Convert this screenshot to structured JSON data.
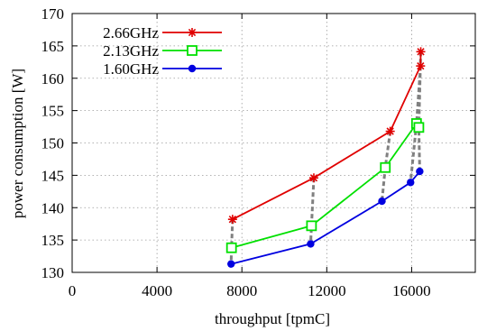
{
  "chart_data": {
    "type": "line",
    "title": "",
    "xlabel": "throughput [tpmC]",
    "ylabel": "power consumption [W]",
    "xlim": [
      0,
      19000
    ],
    "ylim": [
      130,
      170
    ],
    "x_ticks": [
      0,
      4000,
      8000,
      12000,
      16000
    ],
    "x_tick_labels": [
      "0",
      "4000",
      "8000",
      "12000",
      "16000"
    ],
    "y_ticks": [
      130,
      135,
      140,
      145,
      150,
      155,
      160,
      165,
      170
    ],
    "y_tick_labels": [
      "130",
      "135",
      "140",
      "145",
      "150",
      "155",
      "160",
      "165",
      "170"
    ],
    "grid": true,
    "legend_position": "top-left",
    "series": [
      {
        "name": "2.66GHz",
        "color": "#e00000",
        "marker": "star",
        "points": [
          {
            "x": 7560,
            "y": 138.2
          },
          {
            "x": 11390,
            "y": 144.6
          },
          {
            "x": 14990,
            "y": 151.8
          },
          {
            "x": 16420,
            "y": 161.9
          },
          {
            "x": 16430,
            "y": 164.1
          }
        ]
      },
      {
        "name": "2.13GHz",
        "color": "#00e000",
        "marker": "open-square",
        "points": [
          {
            "x": 7510,
            "y": 133.8
          },
          {
            "x": 11280,
            "y": 137.2
          },
          {
            "x": 14760,
            "y": 146.2
          },
          {
            "x": 16230,
            "y": 153.0
          },
          {
            "x": 16340,
            "y": 152.4
          }
        ]
      },
      {
        "name": "1.60GHz",
        "color": "#0000e0",
        "marker": "filled-circle",
        "points": [
          {
            "x": 7490,
            "y": 131.3
          },
          {
            "x": 11240,
            "y": 134.4
          },
          {
            "x": 14600,
            "y": 141.0
          },
          {
            "x": 15950,
            "y": 143.9
          },
          {
            "x": 16380,
            "y": 145.6
          }
        ]
      }
    ],
    "connectors": {
      "style": "gray-dashed",
      "color": "#808080"
    }
  }
}
